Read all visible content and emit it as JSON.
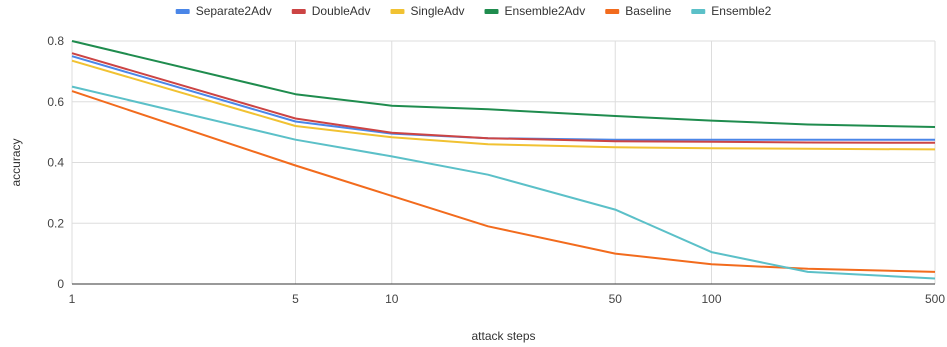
{
  "chart_data": {
    "type": "line",
    "title": "",
    "xlabel": "attack steps",
    "ylabel": "accuracy",
    "x_scale": "log",
    "x": [
      1,
      5,
      10,
      20,
      50,
      100,
      200,
      500
    ],
    "x_ticks": [
      1,
      5,
      10,
      50,
      100,
      500
    ],
    "x_tick_labels": [
      "1",
      "5",
      "10",
      "50",
      "100",
      "500"
    ],
    "xlim": [
      1,
      500
    ],
    "ylim": [
      0,
      0.8
    ],
    "y_ticks": [
      0,
      0.2,
      0.4,
      0.6,
      0.8
    ],
    "y_tick_labels": [
      "0",
      "0.2",
      "0.4",
      "0.6",
      "0.8"
    ],
    "grid": true,
    "legend_position": "top",
    "series": [
      {
        "name": "Separate2Adv",
        "color": "#4a86e8",
        "values": [
          0.75,
          0.535,
          0.495,
          0.48,
          0.475,
          0.475,
          0.475,
          0.475
        ]
      },
      {
        "name": "DoubleAdv",
        "color": "#cc4444",
        "values": [
          0.76,
          0.545,
          0.498,
          0.48,
          0.47,
          0.468,
          0.466,
          0.465
        ]
      },
      {
        "name": "SingleAdv",
        "color": "#f1c232",
        "values": [
          0.735,
          0.52,
          0.483,
          0.46,
          0.45,
          0.447,
          0.445,
          0.443
        ]
      },
      {
        "name": "Ensemble2Adv",
        "color": "#1f8c4e",
        "values": [
          0.8,
          0.625,
          0.587,
          0.575,
          0.553,
          0.538,
          0.525,
          0.517
        ]
      },
      {
        "name": "Baseline",
        "color": "#f26b1d",
        "values": [
          0.635,
          0.39,
          0.29,
          0.19,
          0.1,
          0.065,
          0.05,
          0.04
        ]
      },
      {
        "name": "Ensemble2",
        "color": "#5bc0c8",
        "values": [
          0.65,
          0.475,
          0.42,
          0.36,
          0.245,
          0.105,
          0.04,
          0.018
        ]
      }
    ]
  }
}
